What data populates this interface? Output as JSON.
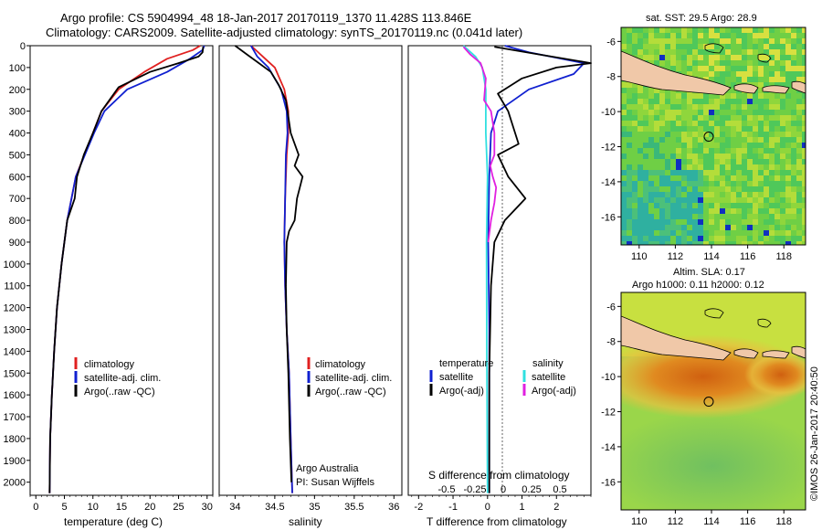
{
  "header": {
    "title_line1": "Argo profile: CS 5904994_48 18-Jan-2017 20170119_1370 11.428S 113.846E",
    "title_line2": "Climatology: CARS2009. Satellite-adjusted climatology: synTS_20170119.nc (0.041d later)"
  },
  "colors": {
    "climatology": "#e02020",
    "satellite": "#1020d0",
    "argo": "#000000",
    "sat_salinity": "#30e0e0",
    "argo_salinity": "#e020e0",
    "land": "#f0c8a8"
  },
  "chart_data": [
    {
      "type": "line",
      "id": "temperature",
      "xlabel": "temperature (deg C)",
      "xlim": [
        -1,
        31
      ],
      "xticks": [
        0,
        5,
        10,
        15,
        20,
        25,
        30
      ],
      "ylim": [
        2060,
        0
      ],
      "yticks": [
        0,
        100,
        200,
        300,
        400,
        500,
        600,
        700,
        800,
        900,
        1000,
        1100,
        1200,
        1300,
        1400,
        1500,
        1600,
        1700,
        1800,
        1900,
        2000
      ],
      "legend": [
        "climatology",
        "satellite-adj. clim.",
        "Argo(..raw -QC)"
      ],
      "series": [
        {
          "name": "climatology",
          "color": "#e02020",
          "x": [
            28.8,
            27.5,
            23,
            19,
            14.5,
            11.5,
            10,
            8.5,
            7,
            5.5,
            4.5,
            3.7,
            3.2,
            2.8,
            2.5,
            2.4
          ],
          "y": [
            0,
            20,
            60,
            120,
            200,
            300,
            400,
            500,
            600,
            800,
            1000,
            1200,
            1400,
            1600,
            1800,
            2050
          ]
        },
        {
          "name": "satellite-adj. clim.",
          "color": "#1020d0",
          "x": [
            29.5,
            29.2,
            27,
            23,
            16,
            12,
            10.2,
            8.6,
            7,
            5.5,
            4.5,
            3.7,
            3.2,
            2.8,
            2.5,
            2.4
          ],
          "y": [
            0,
            20,
            60,
            120,
            200,
            300,
            400,
            500,
            600,
            800,
            1000,
            1200,
            1400,
            1600,
            1800,
            2050
          ]
        },
        {
          "name": "Argo(..raw -QC)",
          "color": "#000000",
          "x": [
            29.3,
            29.2,
            28.5,
            25,
            20,
            14.5,
            11.5,
            10,
            8.4,
            7.2,
            6.8,
            5.5,
            4.5,
            3.7,
            3.2,
            2.8,
            2.5,
            2.4
          ],
          "y": [
            5,
            30,
            50,
            80,
            120,
            190,
            300,
            400,
            500,
            600,
            700,
            800,
            1000,
            1200,
            1400,
            1600,
            1800,
            2050
          ]
        }
      ]
    },
    {
      "type": "line",
      "id": "salinity",
      "xlabel": "salinity",
      "xlim": [
        33.8,
        36.1
      ],
      "xticks": [
        34,
        34.5,
        35,
        35.5,
        36
      ],
      "ylim": [
        2060,
        0
      ],
      "legend": [
        "climatology",
        "satellite-adj. clim.",
        "Argo(..raw -QC)"
      ],
      "annotation": [
        "Argo Australia",
        "PI: Susan Wijffels"
      ],
      "series": [
        {
          "name": "climatology",
          "color": "#e02020",
          "x": [
            34.2,
            34.35,
            34.5,
            34.62,
            34.67,
            34.67,
            34.65,
            34.63,
            34.62,
            34.63,
            34.65,
            34.68,
            34.7,
            34.72
          ],
          "y": [
            0,
            50,
            100,
            200,
            300,
            400,
            500,
            700,
            900,
            1100,
            1300,
            1500,
            1800,
            2050
          ]
        },
        {
          "name": "satellite-adj. clim.",
          "color": "#1020d0",
          "x": [
            34.2,
            34.28,
            34.42,
            34.58,
            34.65,
            34.66,
            34.64,
            34.63,
            34.62,
            34.63,
            34.65,
            34.68,
            34.7,
            34.72
          ],
          "y": [
            0,
            50,
            100,
            200,
            300,
            400,
            500,
            700,
            900,
            1100,
            1300,
            1500,
            1800,
            2050
          ]
        },
        {
          "name": "Argo(..raw -QC)",
          "color": "#000000",
          "x": [
            34.0,
            34.15,
            34.3,
            34.45,
            34.55,
            34.64,
            34.66,
            34.7,
            34.8,
            34.75,
            34.85,
            34.78,
            34.75,
            34.68,
            34.65,
            34.64,
            34.65,
            34.67,
            34.69,
            34.71
          ],
          "y": [
            0,
            40,
            80,
            120,
            180,
            250,
            300,
            400,
            500,
            550,
            600,
            700,
            800,
            850,
            900,
            1100,
            1300,
            1500,
            1800,
            2000
          ]
        }
      ]
    },
    {
      "type": "line",
      "id": "difference",
      "xlabel": "T difference from climatology",
      "xlabel_top": "S difference from climatology",
      "xlim": [
        -2.3,
        3
      ],
      "xticks": [
        -2,
        -1,
        0,
        1,
        2
      ],
      "xticks_top_labels": [
        "-0.5",
        "-0.25",
        "0",
        "0.25",
        "0.5"
      ],
      "ylim": [
        2060,
        0
      ],
      "legend_headers": [
        "temperature",
        "salinity"
      ],
      "legend": [
        "satellite",
        "Argo(-adj)",
        "satellite",
        "Argo(-adj)"
      ],
      "series": [
        {
          "name": "temperature satellite",
          "color": "#1020d0",
          "x": [
            0.5,
            1.2,
            2.8,
            2.5,
            1.2,
            0.3,
            0.1,
            0.05,
            0.02,
            0.05,
            0.05,
            0.05
          ],
          "y": [
            0,
            30,
            80,
            130,
            200,
            300,
            400,
            600,
            900,
            1300,
            1700,
            2050
          ]
        },
        {
          "name": "temperature Argo(-adj)",
          "color": "#000000",
          "x": [
            0.2,
            1.5,
            3.0,
            2.0,
            1.0,
            0.3,
            0.6,
            0.9,
            0.3,
            0.6,
            1.1,
            0.5,
            0.2,
            0.1,
            0.05,
            0.05
          ],
          "y": [
            5,
            40,
            80,
            100,
            150,
            220,
            300,
            450,
            500,
            600,
            700,
            800,
            900,
            1100,
            1500,
            2050
          ]
        },
        {
          "name": "salinity satellite",
          "color": "#30e0e0",
          "x": [
            -0.7,
            -0.35,
            -0.15,
            -0.05,
            -0.05,
            0.0,
            -0.03,
            -0.02,
            0.0
          ],
          "y": [
            0,
            50,
            100,
            200,
            400,
            600,
            900,
            1400,
            2050
          ]
        },
        {
          "name": "salinity Argo(-adj)",
          "color": "#e020e0",
          "x": [
            -0.7,
            -0.5,
            -0.2,
            -0.05,
            -0.1,
            0.1,
            0.2,
            0.2,
            0.08,
            0.15,
            0.25,
            0.2,
            0.1,
            0.02
          ],
          "y": [
            5,
            40,
            80,
            150,
            250,
            300,
            400,
            500,
            550,
            600,
            650,
            720,
            800,
            900
          ]
        }
      ]
    },
    {
      "type": "heatmap",
      "id": "sst_map",
      "title": "sat. SST: 29.5 Argo: 28.9",
      "xlim": [
        109,
        119.2
      ],
      "ylim": [
        -17.6,
        -5.2
      ],
      "xticks": [
        110,
        112,
        114,
        116,
        118
      ],
      "yticks": [
        -6,
        -8,
        -10,
        -12,
        -14,
        -16
      ],
      "marker": {
        "lon": 113.846,
        "lat": -11.428
      }
    },
    {
      "type": "heatmap",
      "id": "sla_map",
      "title": "Altim. SLA: 0.17",
      "subtitle": "Argo h1000: 0.11 h2000: 0.12",
      "xlim": [
        109,
        119.2
      ],
      "ylim": [
        -17.6,
        -5.2
      ],
      "xticks": [
        110,
        112,
        114,
        116,
        118
      ],
      "yticks": [
        -6,
        -8,
        -10,
        -12,
        -14,
        -16
      ],
      "marker": {
        "lon": 113.846,
        "lat": -11.428
      }
    }
  ],
  "footer": {
    "stamp": "©IMOS 26-Jan-2017 20:40:50"
  }
}
